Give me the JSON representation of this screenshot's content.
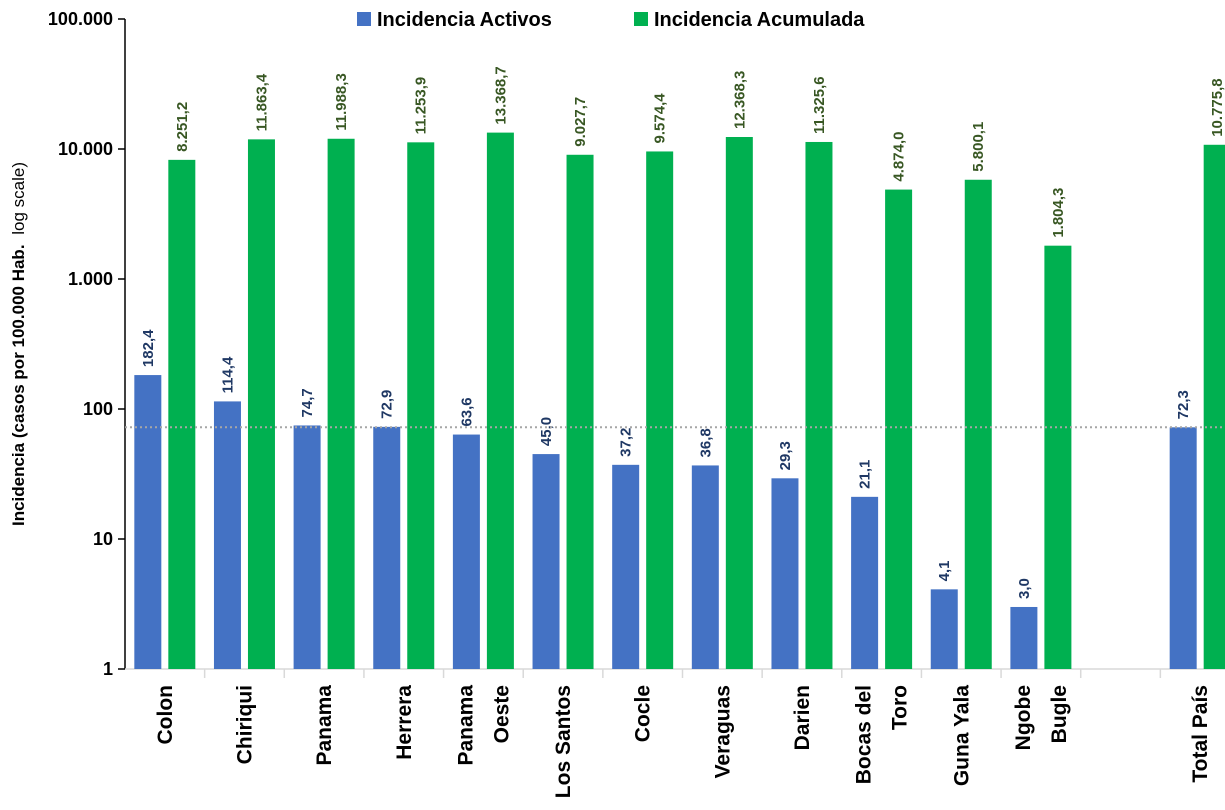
{
  "chart_data": {
    "type": "bar",
    "yscale": "log",
    "ylim": [
      1,
      100000
    ],
    "yticks": [
      1,
      10,
      100,
      1000,
      10000,
      100000
    ],
    "ytick_labels": [
      "1",
      "10",
      "100",
      "1.000",
      "10.000",
      "100.000"
    ],
    "ylabel_main": "Incidencia (casos por 100.000 Hab.",
    "ylabel_note": "log scale)",
    "legend_position": "top",
    "categories": [
      [
        "Colon"
      ],
      [
        "Chiriqui"
      ],
      [
        "Panama"
      ],
      [
        "Herrera"
      ],
      [
        "Panama",
        "Oeste"
      ],
      [
        "Los Santos"
      ],
      [
        "Cocle"
      ],
      [
        "Veraguas"
      ],
      [
        "Darien"
      ],
      [
        "Bocas del",
        "Toro"
      ],
      [
        "Guna Yala"
      ],
      [
        "Ngobe",
        "Bugle"
      ],
      [
        ""
      ],
      [
        "Total País"
      ]
    ],
    "series": [
      {
        "name": "Incidencia Activos",
        "color": "#4472C4",
        "label_color": "#1F3864",
        "values": [
          182.4,
          114.4,
          74.7,
          72.9,
          63.6,
          45.0,
          37.2,
          36.8,
          29.3,
          21.1,
          4.1,
          3.0,
          null,
          72.3
        ],
        "labels": [
          "182,4",
          "114,4",
          "74,7",
          "72,9",
          "63,6",
          "45,0",
          "37,2",
          "36,8",
          "29,3",
          "21,1",
          "4,1",
          "3,0",
          "",
          "72,3"
        ]
      },
      {
        "name": "Incidencia Acumulada",
        "color": "#00B050",
        "label_color": "#385723",
        "values": [
          8251.2,
          11863.4,
          11988.3,
          11253.9,
          13368.7,
          9027.7,
          9574.4,
          12368.3,
          11325.6,
          4874.0,
          5800.1,
          1804.3,
          null,
          10775.8
        ],
        "labels": [
          "8.251,2",
          "11.863,4",
          "11.988,3",
          "11.253,9",
          "13.368,7",
          "9.027,7",
          "9.574,4",
          "12.368,3",
          "11.325,6",
          "4.874,0",
          "5.800,1",
          "1.804,3",
          "",
          "10.775,8"
        ]
      }
    ],
    "reference_line": {
      "value": 72.3,
      "style": "dotted",
      "color": "#A6A6A6"
    }
  }
}
